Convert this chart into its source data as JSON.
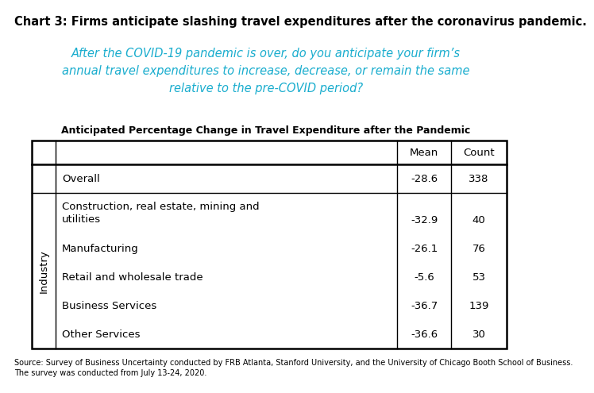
{
  "title": "Chart 3: Firms anticipate slashing travel expenditures after the coronavirus pandemic.",
  "subtitle_lines": [
    "After the COVID-19 pandemic is over, do you anticipate your firm’s",
    "annual travel expenditures to increase, decrease, or remain the same",
    "relative to the pre-COVID period?"
  ],
  "subtitle_color": "#1AADCE",
  "table_title": "Anticipated Percentage Change in Travel Expenditure after the Pandemic",
  "rows": [
    {
      "col0": "",
      "label": "Overall",
      "mean": "-28.6",
      "count": "338",
      "is_overall": true,
      "multiline": false
    },
    {
      "col0": "Industry",
      "label": "Construction, real estate, mining and\nutilities",
      "mean": "-32.9",
      "count": "40",
      "is_overall": false,
      "multiline": true
    },
    {
      "col0": "",
      "label": "Manufacturing",
      "mean": "-26.1",
      "count": "76",
      "is_overall": false,
      "multiline": false
    },
    {
      "col0": "",
      "label": "Retail and wholesale trade",
      "mean": "-5.6",
      "count": "53",
      "is_overall": false,
      "multiline": false
    },
    {
      "col0": "",
      "label": "Business Services",
      "mean": "-36.7",
      "count": "139",
      "is_overall": false,
      "multiline": false
    },
    {
      "col0": "",
      "label": "Other Services",
      "mean": "-36.6",
      "count": "30",
      "is_overall": false,
      "multiline": false
    }
  ],
  "source_lines": [
    "Source: Survey of Business Uncertainty conducted by FRB Atlanta, Stanford University, and the University of Chicago Booth School of Business.",
    "The survey was conducted from July 13-24, 2020."
  ],
  "bg_color": "#ffffff",
  "title_fontsize": 10.5,
  "subtitle_fontsize": 10.5,
  "table_title_fontsize": 9.0,
  "table_fontsize": 9.5,
  "source_fontsize": 7.0
}
